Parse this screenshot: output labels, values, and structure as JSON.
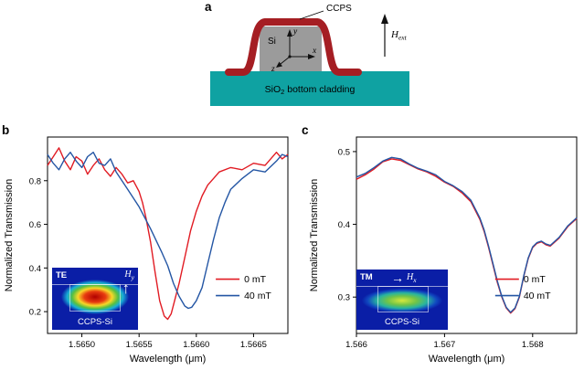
{
  "panel_a": {
    "label": "a",
    "ccps": "CCPS",
    "si": "Si",
    "axes": {
      "x": "x",
      "y": "y",
      "z": "z"
    },
    "h_ext": {
      "main": "H",
      "sub": "ext"
    },
    "cladding": {
      "pre": "SiO",
      "sub": "2",
      "post": " bottom cladding"
    }
  },
  "panel_b": {
    "label": "b",
    "inset": {
      "mode": "TE",
      "field": {
        "main": "H",
        "sub": "y"
      },
      "caption": "CCPS-Si"
    }
  },
  "panel_c": {
    "label": "c",
    "inset": {
      "mode": "TM",
      "field": {
        "main": "H",
        "sub": "x"
      },
      "caption": "CCPS-Si"
    }
  },
  "colors": {
    "curve_red": "#e11b23",
    "curve_blue": "#2456a4",
    "cladding_teal": "#0fa2a2",
    "si_gray": "#9b9b9b",
    "ccps_film_red": "#a51e23"
  },
  "chart_data": [
    {
      "id": "chart-b",
      "type": "line",
      "title": "",
      "xlabel": "Wavelength (μm)",
      "ylabel": "Normalized Transmission",
      "xlim": [
        1.5647,
        1.5668
      ],
      "ylim": [
        0.1,
        1.0
      ],
      "xticks": [
        1.565,
        1.5655,
        1.566,
        1.5665
      ],
      "xtick_labels": [
        "1.5650",
        "1.5655",
        "1.5660",
        "1.5665"
      ],
      "yticks": [
        0.2,
        0.4,
        0.6,
        0.8
      ],
      "ytick_labels": [
        "0.2",
        "0.4",
        "0.6",
        "0.8"
      ],
      "grid": false,
      "legend_pos": [
        0.7,
        0.74
      ],
      "series": [
        {
          "name": "0 mT",
          "color": "#e11b23",
          "points": [
            [
              1.5647,
              0.87
            ],
            [
              1.56475,
              0.91
            ],
            [
              1.5648,
              0.95
            ],
            [
              1.56485,
              0.89
            ],
            [
              1.5649,
              0.85
            ],
            [
              1.56495,
              0.91
            ],
            [
              1.565,
              0.89
            ],
            [
              1.56505,
              0.83
            ],
            [
              1.5651,
              0.87
            ],
            [
              1.56515,
              0.9
            ],
            [
              1.5652,
              0.85
            ],
            [
              1.56525,
              0.82
            ],
            [
              1.5653,
              0.86
            ],
            [
              1.56535,
              0.83
            ],
            [
              1.5654,
              0.79
            ],
            [
              1.56545,
              0.8
            ],
            [
              1.5655,
              0.75
            ],
            [
              1.56553,
              0.7
            ],
            [
              1.56556,
              0.63
            ],
            [
              1.5656,
              0.52
            ],
            [
              1.56564,
              0.38
            ],
            [
              1.56568,
              0.25
            ],
            [
              1.56572,
              0.18
            ],
            [
              1.56575,
              0.165
            ],
            [
              1.56578,
              0.19
            ],
            [
              1.5658,
              0.23
            ],
            [
              1.56585,
              0.33
            ],
            [
              1.5659,
              0.45
            ],
            [
              1.56595,
              0.57
            ],
            [
              1.566,
              0.66
            ],
            [
              1.56605,
              0.73
            ],
            [
              1.5661,
              0.78
            ],
            [
              1.56615,
              0.81
            ],
            [
              1.5662,
              0.84
            ],
            [
              1.5663,
              0.86
            ],
            [
              1.5664,
              0.85
            ],
            [
              1.5665,
              0.88
            ],
            [
              1.5666,
              0.87
            ],
            [
              1.5667,
              0.93
            ],
            [
              1.56675,
              0.9
            ],
            [
              1.5668,
              0.92
            ]
          ]
        },
        {
          "name": "40 mT",
          "color": "#2456a4",
          "points": [
            [
              1.5647,
              0.92
            ],
            [
              1.56475,
              0.88
            ],
            [
              1.5648,
              0.85
            ],
            [
              1.56485,
              0.9
            ],
            [
              1.5649,
              0.93
            ],
            [
              1.56495,
              0.89
            ],
            [
              1.565,
              0.86
            ],
            [
              1.56505,
              0.91
            ],
            [
              1.5651,
              0.93
            ],
            [
              1.56515,
              0.88
            ],
            [
              1.5652,
              0.87
            ],
            [
              1.56525,
              0.9
            ],
            [
              1.5653,
              0.84
            ],
            [
              1.56535,
              0.8
            ],
            [
              1.5654,
              0.76
            ],
            [
              1.5655,
              0.68
            ],
            [
              1.5656,
              0.58
            ],
            [
              1.5657,
              0.47
            ],
            [
              1.56575,
              0.41
            ],
            [
              1.5658,
              0.33
            ],
            [
              1.56585,
              0.27
            ],
            [
              1.5659,
              0.225
            ],
            [
              1.56593,
              0.215
            ],
            [
              1.56596,
              0.22
            ],
            [
              1.566,
              0.25
            ],
            [
              1.56605,
              0.31
            ],
            [
              1.5661,
              0.42
            ],
            [
              1.56615,
              0.53
            ],
            [
              1.5662,
              0.63
            ],
            [
              1.56625,
              0.7
            ],
            [
              1.5663,
              0.76
            ],
            [
              1.5664,
              0.81
            ],
            [
              1.5665,
              0.85
            ],
            [
              1.5666,
              0.84
            ],
            [
              1.5667,
              0.89
            ],
            [
              1.56675,
              0.92
            ],
            [
              1.5668,
              0.91
            ]
          ]
        }
      ]
    },
    {
      "id": "chart-c",
      "type": "line",
      "title": "",
      "xlabel": "Wavelength (μm)",
      "ylabel": "Normalized Transmission",
      "xlim": [
        1.566,
        1.5685
      ],
      "ylim": [
        0.25,
        0.52
      ],
      "xticks": [
        1.566,
        1.567,
        1.568
      ],
      "xtick_labels": [
        "1.566",
        "1.567",
        "1.568"
      ],
      "yticks": [
        0.3,
        0.4,
        0.5
      ],
      "ytick_labels": [
        "0.3",
        "0.4",
        "0.5"
      ],
      "grid": false,
      "legend_pos": [
        0.63,
        0.74
      ],
      "series": [
        {
          "name": "0 mT",
          "color": "#e11b23",
          "points": [
            [
              1.566,
              0.462
            ],
            [
              1.5661,
              0.468
            ],
            [
              1.5662,
              0.476
            ],
            [
              1.5663,
              0.486
            ],
            [
              1.5664,
              0.49
            ],
            [
              1.5665,
              0.488
            ],
            [
              1.5666,
              0.482
            ],
            [
              1.5667,
              0.476
            ],
            [
              1.5668,
              0.472
            ],
            [
              1.5669,
              0.466
            ],
            [
              1.567,
              0.458
            ],
            [
              1.5671,
              0.452
            ],
            [
              1.5672,
              0.443
            ],
            [
              1.5673,
              0.431
            ],
            [
              1.5674,
              0.407
            ],
            [
              1.56745,
              0.39
            ],
            [
              1.5675,
              0.368
            ],
            [
              1.56755,
              0.344
            ],
            [
              1.5676,
              0.32
            ],
            [
              1.56765,
              0.3
            ],
            [
              1.5677,
              0.285
            ],
            [
              1.56775,
              0.278
            ],
            [
              1.5678,
              0.284
            ],
            [
              1.56785,
              0.3
            ],
            [
              1.5679,
              0.329
            ],
            [
              1.56795,
              0.353
            ],
            [
              1.568,
              0.368
            ],
            [
              1.56805,
              0.374
            ],
            [
              1.5681,
              0.376
            ],
            [
              1.56815,
              0.372
            ],
            [
              1.5682,
              0.37
            ],
            [
              1.5683,
              0.381
            ],
            [
              1.5684,
              0.397
            ],
            [
              1.5685,
              0.408
            ]
          ]
        },
        {
          "name": "40 mT",
          "color": "#2456a4",
          "points": [
            [
              1.566,
              0.465
            ],
            [
              1.5661,
              0.47
            ],
            [
              1.5662,
              0.478
            ],
            [
              1.5663,
              0.487
            ],
            [
              1.5664,
              0.492
            ],
            [
              1.5665,
              0.49
            ],
            [
              1.5666,
              0.483
            ],
            [
              1.5667,
              0.477
            ],
            [
              1.5668,
              0.473
            ],
            [
              1.5669,
              0.468
            ],
            [
              1.567,
              0.459
            ],
            [
              1.5671,
              0.453
            ],
            [
              1.5672,
              0.445
            ],
            [
              1.5673,
              0.433
            ],
            [
              1.5674,
              0.409
            ],
            [
              1.56745,
              0.392
            ],
            [
              1.5675,
              0.37
            ],
            [
              1.56755,
              0.346
            ],
            [
              1.5676,
              0.322
            ],
            [
              1.56765,
              0.301
            ],
            [
              1.5677,
              0.286
            ],
            [
              1.56775,
              0.279
            ],
            [
              1.5678,
              0.285
            ],
            [
              1.56785,
              0.301
            ],
            [
              1.5679,
              0.33
            ],
            [
              1.56795,
              0.354
            ],
            [
              1.568,
              0.369
            ],
            [
              1.56805,
              0.375
            ],
            [
              1.5681,
              0.377
            ],
            [
              1.56815,
              0.373
            ],
            [
              1.5682,
              0.371
            ],
            [
              1.5683,
              0.382
            ],
            [
              1.5684,
              0.398
            ],
            [
              1.5685,
              0.409
            ]
          ]
        }
      ]
    }
  ]
}
